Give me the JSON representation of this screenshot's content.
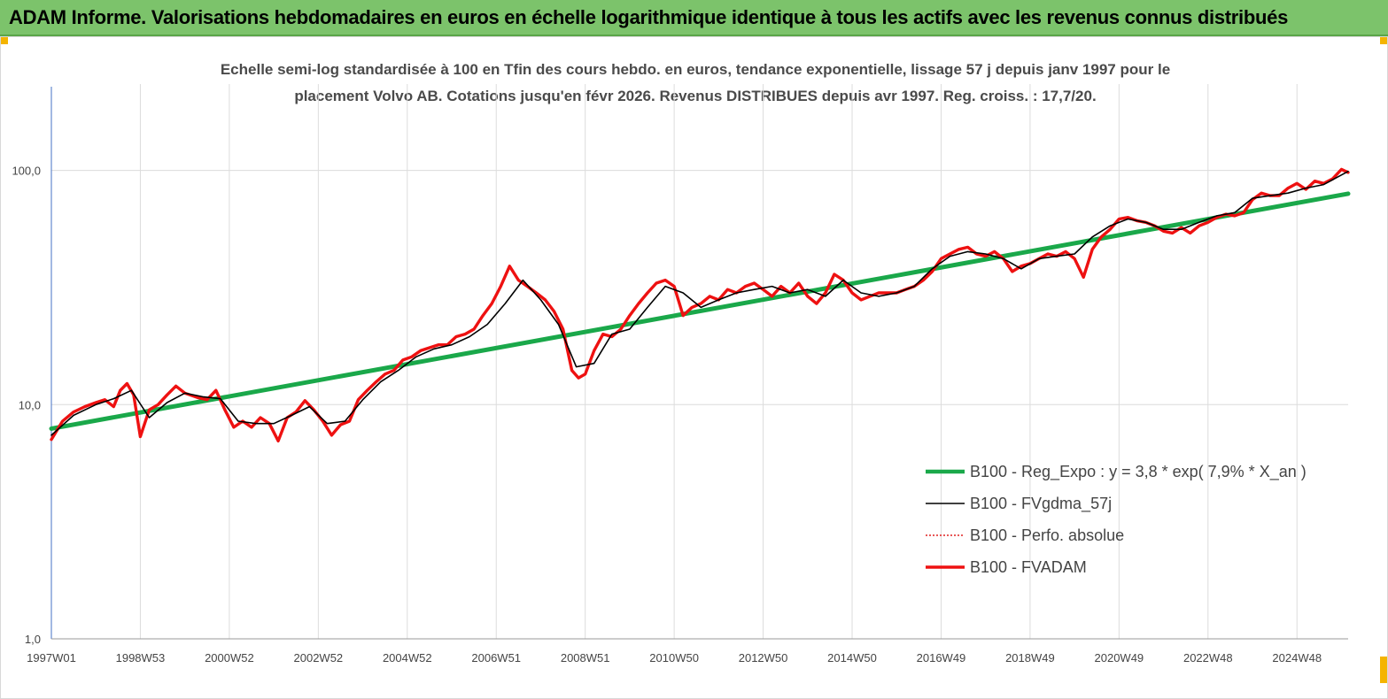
{
  "header": {
    "title": "ADAM Informe. Valorisations hebdomadaires en euros en échelle logarithmique identique à tous les actifs avec les revenus connus distribués"
  },
  "colors": {
    "banner": "#7cc36b",
    "accent_corner": "#f4b400"
  },
  "chart_data": {
    "type": "line",
    "title_line1": "Echelle semi-log standardisée à 100 en Tfin des cours hebdo. en euros, tendance exponentielle, lissage 57 j depuis janv 1997 pour le",
    "title_line2": "placement Volvo AB. Cotations jusqu'en févr 2026. Revenus DISTRIBUES depuis avr 1997. Reg. croiss. : 17,7/20.",
    "y_scale": "log",
    "ylim": [
      1,
      180
    ],
    "y_ticks": [
      {
        "value": 1,
        "label": "1,0"
      },
      {
        "value": 10,
        "label": "10,0"
      },
      {
        "value": 100,
        "label": "100,0"
      }
    ],
    "xlim": [
      1997.0,
      2026.15
    ],
    "x_ticks": [
      {
        "value": 1997.0,
        "label": "1997W01"
      },
      {
        "value": 1999.0,
        "label": "1998W53"
      },
      {
        "value": 2001.0,
        "label": "2000W52"
      },
      {
        "value": 2003.0,
        "label": "2002W52"
      },
      {
        "value": 2005.0,
        "label": "2004W52"
      },
      {
        "value": 2007.0,
        "label": "2006W51"
      },
      {
        "value": 2009.0,
        "label": "2008W51"
      },
      {
        "value": 2011.0,
        "label": "2010W50"
      },
      {
        "value": 2013.0,
        "label": "2012W50"
      },
      {
        "value": 2015.0,
        "label": "2014W50"
      },
      {
        "value": 2017.0,
        "label": "2016W49"
      },
      {
        "value": 2019.0,
        "label": "2018W49"
      },
      {
        "value": 2021.0,
        "label": "2020W49"
      },
      {
        "value": 2023.0,
        "label": "2022W48"
      },
      {
        "value": 2025.0,
        "label": "2024W48"
      }
    ],
    "grid": "vertical",
    "legend_position": "bottom-right",
    "series": [
      {
        "name": "B100 - Reg_Expo : y = 3,8 * exp( 7,9% *  X_an )",
        "color": "#1aa84a",
        "style": "thick",
        "x": [
          1997.0,
          2026.15
        ],
        "values": [
          7.9,
          79.5
        ]
      },
      {
        "name": "B100 - FVgdma_57j",
        "color": "#000000",
        "style": "thin",
        "x": [
          1997.0,
          1997.5,
          1998.0,
          1998.4,
          1998.8,
          1999.2,
          1999.6,
          2000.0,
          2000.4,
          2000.8,
          2001.2,
          2001.6,
          2002.0,
          2002.4,
          2002.8,
          2003.2,
          2003.6,
          2004.0,
          2004.4,
          2004.8,
          2005.2,
          2005.6,
          2006.0,
          2006.4,
          2006.8,
          2007.2,
          2007.6,
          2008.0,
          2008.4,
          2008.8,
          2009.2,
          2009.6,
          2010.0,
          2010.4,
          2010.8,
          2011.2,
          2011.6,
          2012.0,
          2012.4,
          2012.8,
          2013.2,
          2013.6,
          2014.0,
          2014.4,
          2014.8,
          2015.2,
          2015.6,
          2016.0,
          2016.4,
          2016.8,
          2017.2,
          2017.6,
          2018.0,
          2018.4,
          2018.8,
          2019.2,
          2019.6,
          2020.0,
          2020.4,
          2020.8,
          2021.2,
          2021.6,
          2022.0,
          2022.4,
          2022.8,
          2023.2,
          2023.6,
          2024.0,
          2024.4,
          2024.8,
          2025.2,
          2025.6,
          2026.15
        ],
        "values": [
          7.4,
          9.0,
          10.0,
          10.6,
          11.5,
          8.8,
          10.2,
          11.2,
          10.8,
          10.6,
          8.5,
          8.3,
          8.3,
          9.0,
          9.8,
          8.3,
          8.5,
          10.5,
          12.5,
          14.0,
          16.0,
          17.3,
          18.0,
          19.5,
          22.0,
          27.0,
          34.0,
          28.0,
          22.0,
          14.5,
          15.0,
          20.0,
          21.0,
          26.0,
          32.0,
          30.0,
          26.0,
          28.0,
          30.0,
          31.0,
          32.0,
          30.0,
          31.0,
          29.0,
          34.0,
          30.0,
          29.0,
          30.0,
          32.0,
          38.0,
          43.0,
          45.0,
          44.0,
          42.0,
          38.0,
          42.0,
          43.0,
          44.0,
          52.0,
          58.0,
          62.0,
          60.0,
          56.0,
          56.0,
          60.0,
          64.0,
          66.0,
          76.0,
          78.0,
          80.0,
          84.0,
          87.0,
          99.0
        ]
      },
      {
        "name": "B100 - Perfo. absolue",
        "color": "#e02020",
        "style": "dotted",
        "x": [],
        "values": []
      },
      {
        "name": "B100 - FVADAM",
        "color": "#ee1111",
        "style": "thick",
        "x": [
          1997.0,
          1997.25,
          1997.5,
          1997.75,
          1998.0,
          1998.2,
          1998.4,
          1998.55,
          1998.7,
          1998.85,
          1999.0,
          1999.2,
          1999.4,
          1999.6,
          1999.8,
          2000.0,
          2000.3,
          2000.5,
          2000.7,
          2000.9,
          2001.1,
          2001.3,
          2001.5,
          2001.7,
          2001.9,
          2002.1,
          2002.3,
          2002.5,
          2002.7,
          2002.9,
          2003.1,
          2003.3,
          2003.5,
          2003.7,
          2003.9,
          2004.1,
          2004.3,
          2004.5,
          2004.7,
          2004.9,
          2005.1,
          2005.3,
          2005.5,
          2005.7,
          2005.9,
          2006.1,
          2006.3,
          2006.5,
          2006.7,
          2006.9,
          2007.1,
          2007.3,
          2007.5,
          2007.7,
          2007.9,
          2008.1,
          2008.3,
          2008.5,
          2008.7,
          2008.85,
          2009.0,
          2009.2,
          2009.4,
          2009.6,
          2009.8,
          2010.0,
          2010.2,
          2010.4,
          2010.6,
          2010.8,
          2011.0,
          2011.2,
          2011.4,
          2011.6,
          2011.8,
          2012.0,
          2012.2,
          2012.4,
          2012.6,
          2012.8,
          2013.0,
          2013.2,
          2013.4,
          2013.6,
          2013.8,
          2014.0,
          2014.2,
          2014.4,
          2014.6,
          2014.8,
          2015.0,
          2015.2,
          2015.4,
          2015.6,
          2015.8,
          2016.0,
          2016.2,
          2016.4,
          2016.6,
          2016.8,
          2017.0,
          2017.2,
          2017.4,
          2017.6,
          2017.8,
          2018.0,
          2018.2,
          2018.4,
          2018.6,
          2018.8,
          2019.0,
          2019.2,
          2019.4,
          2019.6,
          2019.8,
          2020.0,
          2020.2,
          2020.4,
          2020.6,
          2020.8,
          2021.0,
          2021.2,
          2021.4,
          2021.6,
          2021.8,
          2022.0,
          2022.2,
          2022.4,
          2022.6,
          2022.8,
          2023.0,
          2023.2,
          2023.4,
          2023.6,
          2023.8,
          2024.0,
          2024.2,
          2024.4,
          2024.6,
          2024.8,
          2025.0,
          2025.2,
          2025.4,
          2025.6,
          2025.8,
          2026.0,
          2026.15
        ],
        "values": [
          7.1,
          8.5,
          9.3,
          9.8,
          10.2,
          10.5,
          9.8,
          11.5,
          12.3,
          11.0,
          7.3,
          9.5,
          10.0,
          11.0,
          12.0,
          11.2,
          10.7,
          10.5,
          11.5,
          9.5,
          8.0,
          8.5,
          8.0,
          8.8,
          8.3,
          7.0,
          8.8,
          9.3,
          10.4,
          9.5,
          8.5,
          7.4,
          8.2,
          8.5,
          10.5,
          11.5,
          12.5,
          13.5,
          14.0,
          15.5,
          16.0,
          17.0,
          17.5,
          18.0,
          18.0,
          19.5,
          20.0,
          21.0,
          24.0,
          27.0,
          32.0,
          39.0,
          34.0,
          32.0,
          30.0,
          28.0,
          25.0,
          21.0,
          14.0,
          13.0,
          13.5,
          17.0,
          20.0,
          19.5,
          21.0,
          24.0,
          27.0,
          30.0,
          33.0,
          34.0,
          32.0,
          24.0,
          26.0,
          27.0,
          29.0,
          28.0,
          31.0,
          30.0,
          32.0,
          33.0,
          31.0,
          29.0,
          32.0,
          30.0,
          33.0,
          29.0,
          27.0,
          30.0,
          36.0,
          34.0,
          30.0,
          28.0,
          29.0,
          30.0,
          30.0,
          30.0,
          31.0,
          32.0,
          34.0,
          37.0,
          42.0,
          44.0,
          46.0,
          47.0,
          44.0,
          43.0,
          45.0,
          42.0,
          37.0,
          39.0,
          40.0,
          42.0,
          44.0,
          43.0,
          45.0,
          42.0,
          35.0,
          46.0,
          52.0,
          56.0,
          62.0,
          63.0,
          61.0,
          60.0,
          58.0,
          55.0,
          54.0,
          57.0,
          54.0,
          58.0,
          60.0,
          63.0,
          65.0,
          64.0,
          66.0,
          75.0,
          80.0,
          78.0,
          78.0,
          84.0,
          88.0,
          83.0,
          90.0,
          88.0,
          92.0,
          101.0,
          98.0
        ]
      }
    ]
  }
}
